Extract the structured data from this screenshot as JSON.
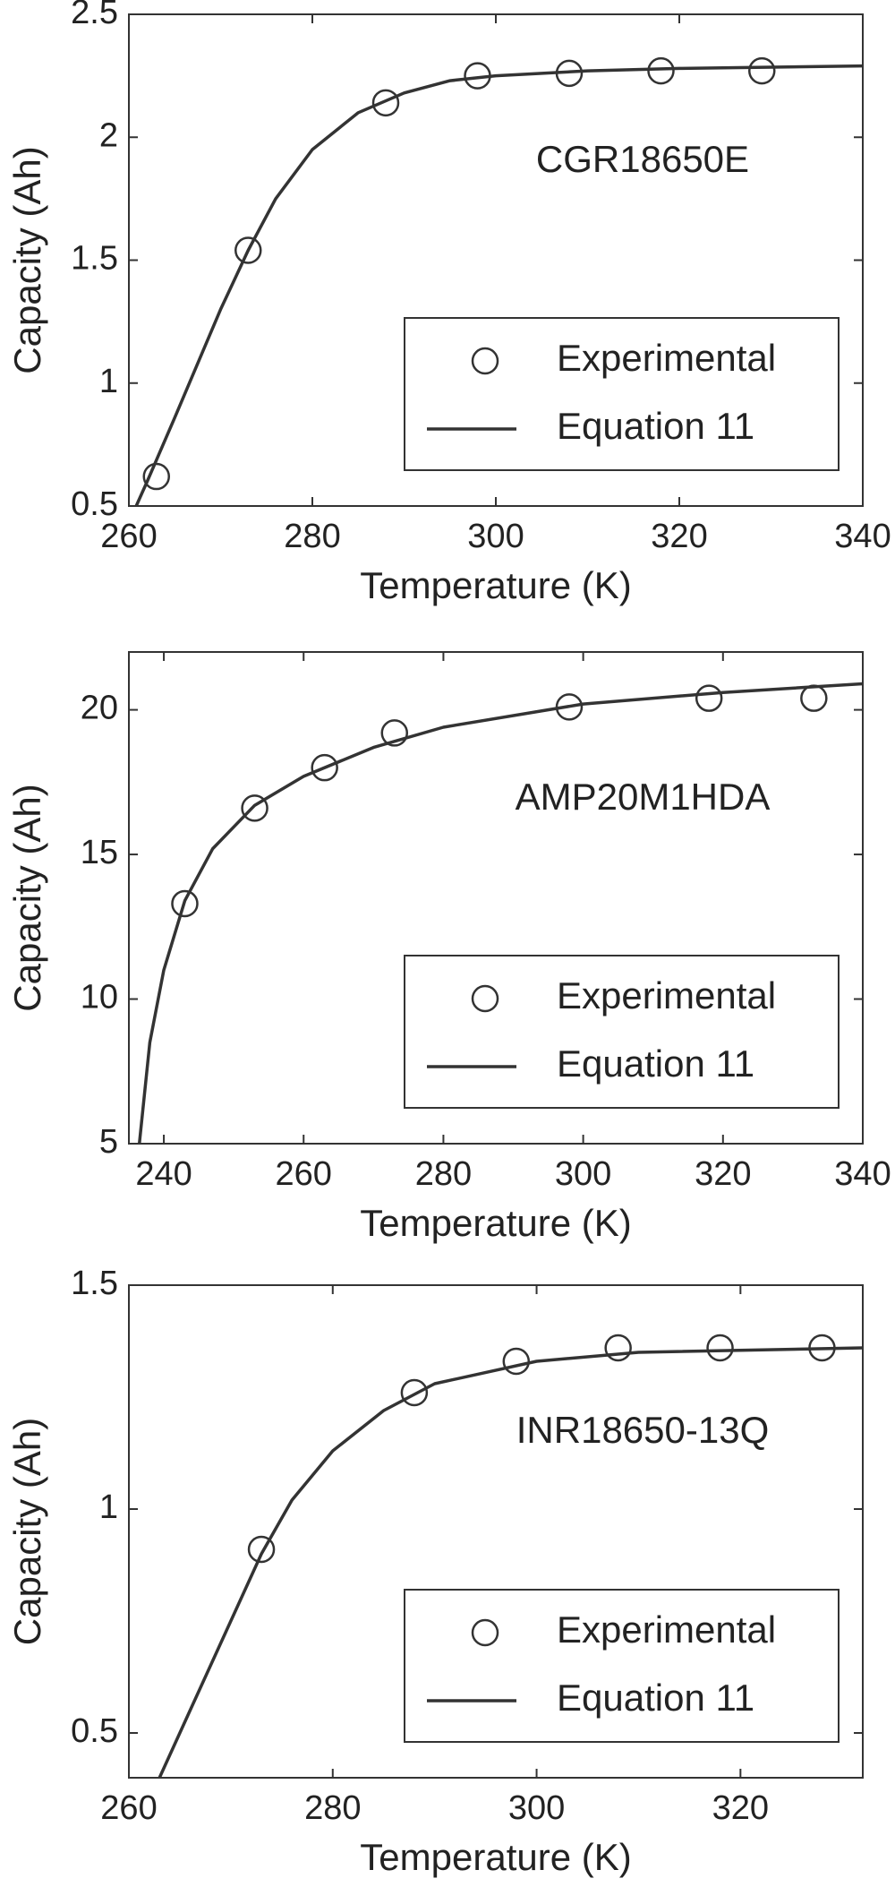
{
  "chart_data": [
    {
      "type": "scatter",
      "annotation": "CGR18650E",
      "xlabel": "Temperature (K)",
      "ylabel": "Capacity (Ah)",
      "xlim": [
        260,
        340
      ],
      "ylim": [
        0.5,
        2.5
      ],
      "xticks": [
        260,
        280,
        300,
        320,
        340
      ],
      "yticks": [
        0.5,
        1,
        1.5,
        2,
        2.5
      ],
      "legend": "lower right",
      "series": [
        {
          "name": "Experimental",
          "type": "scatter",
          "color": "#333333",
          "x": [
            263,
            273,
            288,
            298,
            308,
            318,
            329
          ],
          "values": [
            0.62,
            1.54,
            2.14,
            2.25,
            2.26,
            2.27,
            2.27
          ]
        },
        {
          "name": "Equation 11",
          "type": "line",
          "color": "#333333",
          "x": [
            260.8,
            262,
            265,
            270,
            273,
            276,
            280,
            285,
            290,
            295,
            300,
            310,
            320,
            340
          ],
          "values": [
            0.5,
            0.6,
            0.86,
            1.3,
            1.54,
            1.75,
            1.95,
            2.1,
            2.18,
            2.23,
            2.25,
            2.27,
            2.28,
            2.29
          ]
        }
      ]
    },
    {
      "type": "scatter",
      "annotation": "AMP20M1HDA",
      "xlabel": "Temperature (K)",
      "ylabel": "Capacity (Ah)",
      "xlim": [
        235,
        340
      ],
      "ylim": [
        5,
        22
      ],
      "xticks": [
        240,
        260,
        280,
        300,
        320,
        340
      ],
      "yticks": [
        5,
        10,
        15,
        20
      ],
      "legend": "lower right",
      "series": [
        {
          "name": "Experimental",
          "type": "scatter",
          "color": "#333333",
          "x": [
            243,
            253,
            263,
            273,
            298,
            318,
            333
          ],
          "values": [
            13.3,
            16.6,
            18.0,
            19.2,
            20.1,
            20.4,
            20.4
          ]
        },
        {
          "name": "Equation 11",
          "type": "line",
          "color": "#333333",
          "x": [
            236.5,
            238,
            240,
            243,
            247,
            253,
            260,
            270,
            280,
            300,
            320,
            340
          ],
          "values": [
            5,
            8.5,
            11,
            13.4,
            15.2,
            16.7,
            17.7,
            18.7,
            19.4,
            20.2,
            20.6,
            20.9
          ]
        }
      ]
    },
    {
      "type": "scatter",
      "annotation": "INR18650-13Q",
      "xlabel": "Temperature (K)",
      "ylabel": "Capacity (Ah)",
      "xlim": [
        260,
        332
      ],
      "ylim": [
        0.4,
        1.5
      ],
      "xticks": [
        260,
        280,
        300,
        320
      ],
      "yticks": [
        0.5,
        1,
        1.5
      ],
      "legend": "lower right",
      "series": [
        {
          "name": "Experimental",
          "type": "scatter",
          "color": "#333333",
          "x": [
            273,
            288,
            298,
            308,
            318,
            328
          ],
          "values": [
            0.91,
            1.26,
            1.33,
            1.36,
            1.36,
            1.36
          ]
        },
        {
          "name": "Equation 11",
          "type": "line",
          "color": "#333333",
          "x": [
            263,
            266,
            270,
            273,
            276,
            280,
            285,
            290,
            300,
            310,
            332
          ],
          "values": [
            0.4,
            0.55,
            0.75,
            0.9,
            1.02,
            1.13,
            1.22,
            1.28,
            1.33,
            1.35,
            1.36
          ]
        }
      ]
    }
  ]
}
